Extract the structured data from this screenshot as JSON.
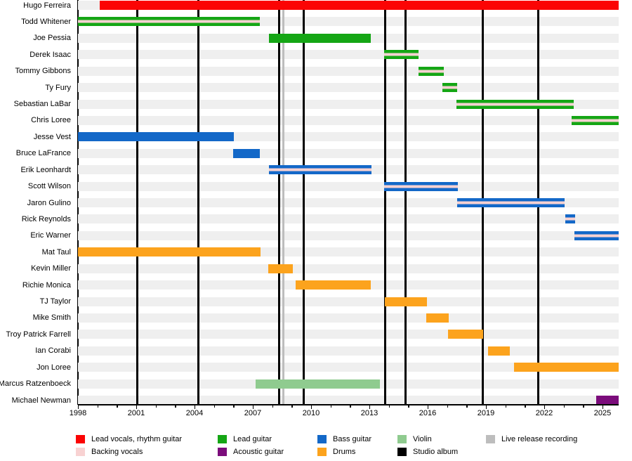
{
  "chart_data": {
    "type": "bar",
    "subtype": "band-membership-timeline",
    "title": "",
    "x_axis": {
      "start": 1998,
      "end": 2025.83,
      "minor_tick_interval": 1,
      "label_interval": 3,
      "tick_labels": [
        "1998",
        "2001",
        "2004",
        "2007",
        "2010",
        "2013",
        "2016",
        "2019",
        "2022",
        "2025"
      ]
    },
    "colors": {
      "lead_vocals": "#fb0404",
      "backing_vocals": "#f8d2d2",
      "lead_guitar": "#15a615",
      "acoustic_guitar": "#7b0c7b",
      "bass_guitar": "#1368c8",
      "drums": "#fca31d",
      "violin": "#8fcb8f",
      "studio_album": "#000000",
      "live_release": "#bdbdbd",
      "row_stripe": "#efefef"
    },
    "members": [
      {
        "name": "Hugo Ferreira",
        "role": "Lead vocals, rhythm guitar",
        "color": "lead_vocals",
        "backing_vocals": false,
        "start": 1999.12,
        "end": 2025.83
      },
      {
        "name": "Todd Whitener",
        "role": "Lead guitar",
        "color": "lead_guitar",
        "backing_vocals": true,
        "start": 1998.0,
        "end": 2007.35
      },
      {
        "name": "Joe Pessia",
        "role": "Lead guitar",
        "color": "lead_guitar",
        "backing_vocals": false,
        "start": 2007.82,
        "end": 2013.08
      },
      {
        "name": "Derek Isaac",
        "role": "Lead guitar",
        "color": "lead_guitar",
        "backing_vocals": true,
        "start": 2013.77,
        "end": 2015.53
      },
      {
        "name": "Tommy Gibbons",
        "role": "Lead guitar",
        "color": "lead_guitar",
        "backing_vocals": true,
        "start": 2015.53,
        "end": 2016.82
      },
      {
        "name": "Ty Fury",
        "role": "Lead guitar",
        "color": "lead_guitar",
        "backing_vocals": true,
        "start": 2016.76,
        "end": 2017.52
      },
      {
        "name": "Sebastian LaBar",
        "role": "Lead guitar",
        "color": "lead_guitar",
        "backing_vocals": true,
        "start": 2017.48,
        "end": 2023.5
      },
      {
        "name": "Chris Loree",
        "role": "Lead guitar",
        "color": "lead_guitar",
        "backing_vocals": true,
        "start": 2023.42,
        "end": 2025.83
      },
      {
        "name": "Jesse Vest",
        "role": "Bass guitar",
        "color": "bass_guitar",
        "backing_vocals": false,
        "start": 1998.0,
        "end": 2006.03
      },
      {
        "name": "Bruce LaFrance",
        "role": "Bass guitar",
        "color": "bass_guitar",
        "backing_vocals": false,
        "start": 2005.98,
        "end": 2007.35
      },
      {
        "name": "Erik Leonhardt",
        "role": "Bass guitar",
        "color": "bass_guitar",
        "backing_vocals": true,
        "start": 2007.82,
        "end": 2013.1
      },
      {
        "name": "Scott Wilson",
        "role": "Bass guitar",
        "color": "bass_guitar",
        "backing_vocals": true,
        "start": 2013.75,
        "end": 2017.54
      },
      {
        "name": "Jaron Gulino",
        "role": "Bass guitar",
        "color": "bass_guitar",
        "backing_vocals": true,
        "start": 2017.5,
        "end": 2023.05
      },
      {
        "name": "Rick Reynolds",
        "role": "Bass guitar",
        "color": "bass_guitar",
        "backing_vocals": true,
        "start": 2023.07,
        "end": 2023.58
      },
      {
        "name": "Eric Warner",
        "role": "Bass guitar",
        "color": "bass_guitar",
        "backing_vocals": true,
        "start": 2023.55,
        "end": 2025.83
      },
      {
        "name": "Mat Taul",
        "role": "Drums",
        "color": "drums",
        "backing_vocals": false,
        "start": 1998.0,
        "end": 2007.38
      },
      {
        "name": "Kevin Miller",
        "role": "Drums",
        "color": "drums",
        "backing_vocals": false,
        "start": 2007.8,
        "end": 2009.07
      },
      {
        "name": "Richie Monica",
        "role": "Drums",
        "color": "drums",
        "backing_vocals": false,
        "start": 2009.2,
        "end": 2013.08
      },
      {
        "name": "TJ Taylor",
        "role": "Drums",
        "color": "drums",
        "backing_vocals": false,
        "start": 2013.78,
        "end": 2015.95
      },
      {
        "name": "Mike Smith",
        "role": "Drums",
        "color": "drums",
        "backing_vocals": false,
        "start": 2015.92,
        "end": 2017.1
      },
      {
        "name": "Troy Patrick Farrell",
        "role": "Drums",
        "color": "drums",
        "backing_vocals": false,
        "start": 2017.06,
        "end": 2018.85
      },
      {
        "name": "Ian Corabi",
        "role": "Drums",
        "color": "drums",
        "backing_vocals": false,
        "start": 2019.1,
        "end": 2020.22
      },
      {
        "name": "Jon Loree",
        "role": "Drums",
        "color": "drums",
        "backing_vocals": false,
        "start": 2020.43,
        "end": 2025.83
      },
      {
        "name": "Marcus Ratzenboeck",
        "role": "Violin",
        "color": "violin",
        "backing_vocals": false,
        "start": 2007.15,
        "end": 2013.55
      },
      {
        "name": "Michael Newman",
        "role": "Acoustic guitar",
        "color": "acoustic_guitar",
        "backing_vocals": false,
        "start": 2024.68,
        "end": 2025.83
      }
    ],
    "studio_albums": [
      2001.05,
      2004.2,
      2008.35,
      2009.62,
      2013.8,
      2014.85,
      2018.83,
      2021.68
    ],
    "live_release_recordings": [
      2008.57
    ],
    "legend": {
      "columns": [
        [
          {
            "label": "Lead vocals, rhythm guitar",
            "color": "lead_vocals"
          },
          {
            "label": "Backing vocals",
            "color": "backing_vocals"
          }
        ],
        [
          {
            "label": "Lead guitar",
            "color": "lead_guitar"
          },
          {
            "label": "Acoustic guitar",
            "color": "acoustic_guitar"
          }
        ],
        [
          {
            "label": "Bass guitar",
            "color": "bass_guitar"
          },
          {
            "label": "Drums",
            "color": "drums"
          }
        ],
        [
          {
            "label": "Violin",
            "color": "violin"
          },
          {
            "label": "Studio album",
            "color": "studio_album"
          }
        ],
        [
          {
            "label": "Live release recording",
            "color": "live_release"
          }
        ]
      ]
    }
  }
}
